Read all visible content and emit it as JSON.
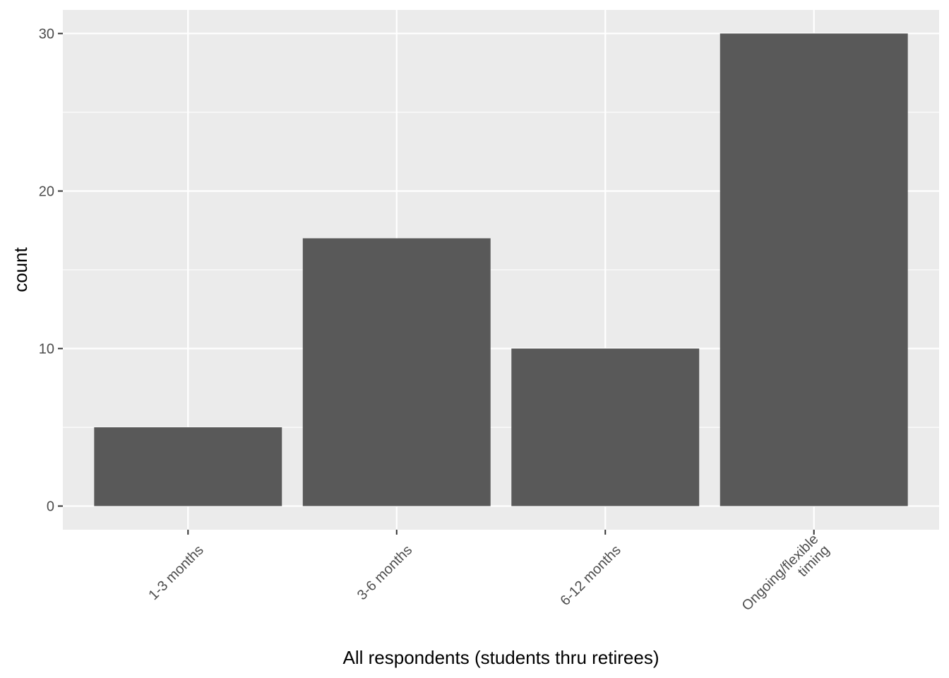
{
  "chart_data": {
    "type": "bar",
    "categories": [
      [
        "1-3 months"
      ],
      [
        "3-6 months"
      ],
      [
        "6-12 months"
      ],
      [
        "Ongoing/flexible",
        "timing"
      ]
    ],
    "values": [
      5,
      17,
      10,
      30
    ],
    "title": "",
    "xlabel": "All respondents (students thru retirees)",
    "ylabel": "count",
    "ylim": [
      -1.5,
      31.5
    ],
    "yticks": [
      0,
      10,
      20,
      30
    ],
    "grid": true,
    "colors": {
      "panel": "#ebebeb",
      "grid": "#ffffff",
      "bar": "#595959",
      "tick": "#333333"
    }
  }
}
